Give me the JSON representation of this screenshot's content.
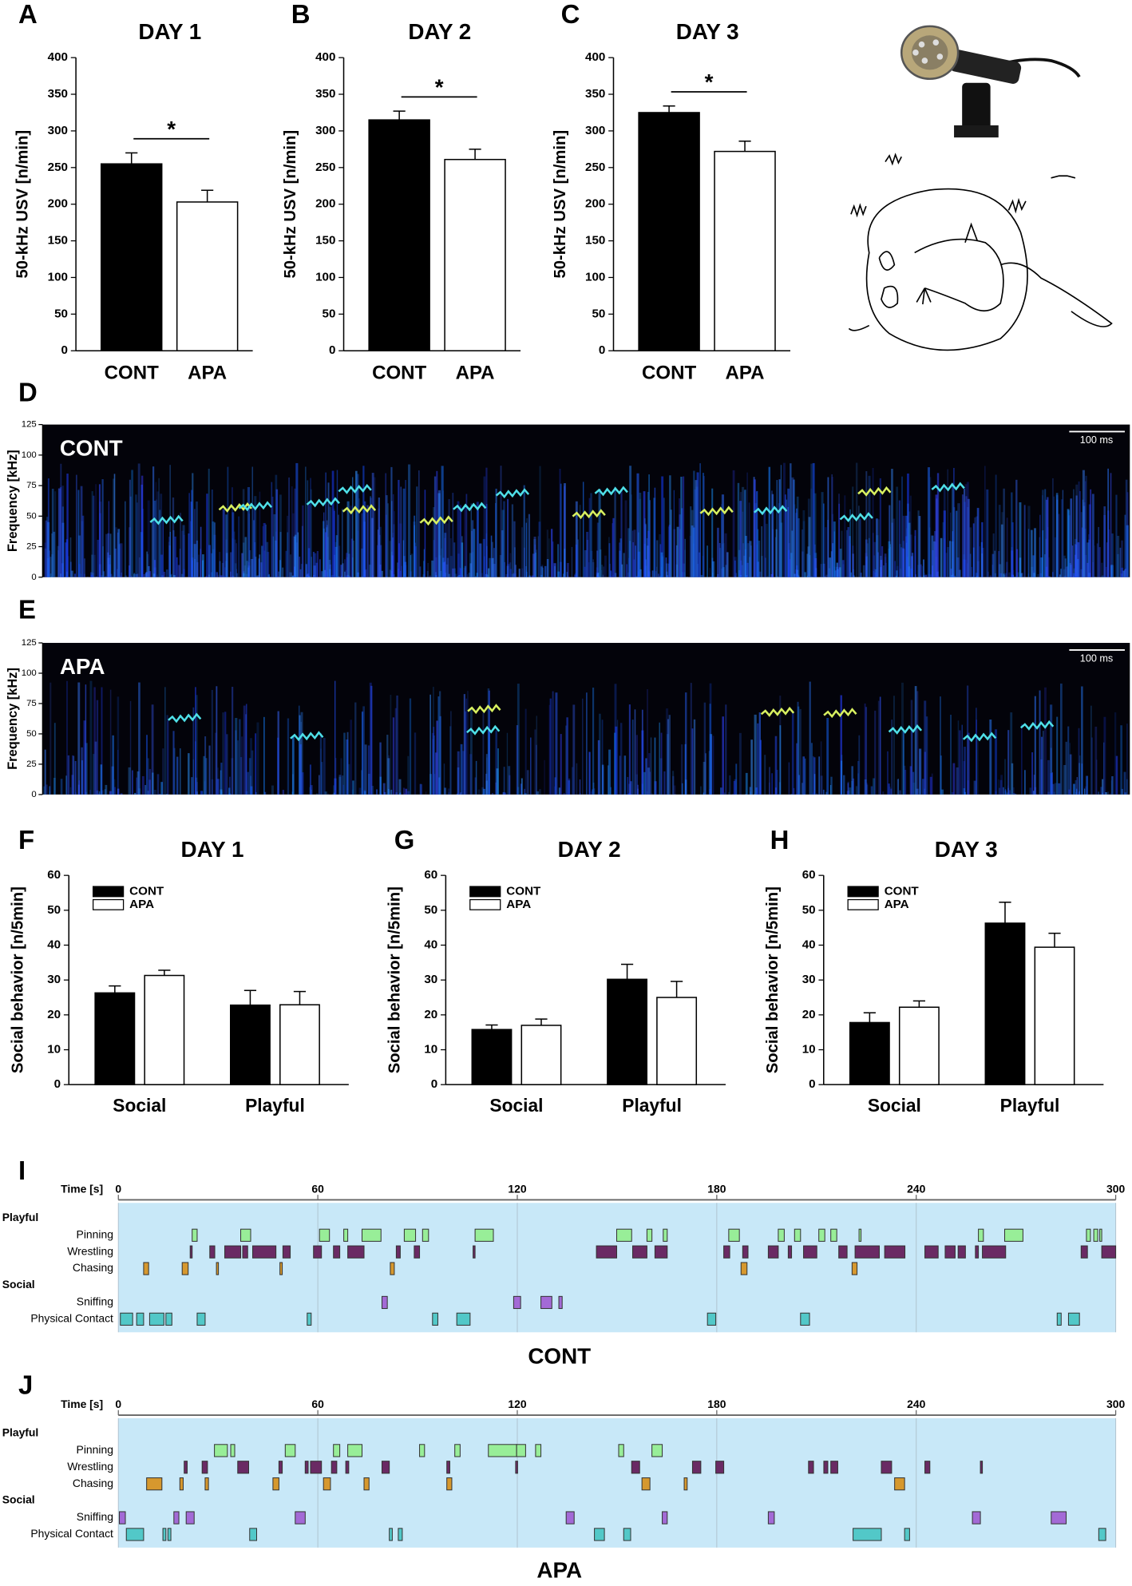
{
  "chart_data": [
    {
      "type": "bar",
      "panel": "A",
      "title": "DAY 1",
      "ylabel": "50-kHz USV [n/min]",
      "categories": [
        "CONT",
        "APA"
      ],
      "values": [
        255,
        203
      ],
      "errors": [
        15,
        16
      ],
      "colors": [
        "#000000",
        "#ffffff"
      ],
      "ylim": [
        0,
        400
      ],
      "yticks": [
        0,
        50,
        100,
        150,
        200,
        250,
        300,
        350,
        400
      ],
      "significance": "*"
    },
    {
      "type": "bar",
      "panel": "B",
      "title": "DAY 2",
      "ylabel": "50-kHz USV [n/min]",
      "categories": [
        "CONT",
        "APA"
      ],
      "values": [
        315,
        261
      ],
      "errors": [
        12,
        14
      ],
      "colors": [
        "#000000",
        "#ffffff"
      ],
      "ylim": [
        0,
        400
      ],
      "yticks": [
        0,
        50,
        100,
        150,
        200,
        250,
        300,
        350,
        400
      ],
      "significance": "*"
    },
    {
      "type": "bar",
      "panel": "C",
      "title": "DAY 3",
      "ylabel": "50-kHz USV [n/min]",
      "categories": [
        "CONT",
        "APA"
      ],
      "values": [
        325,
        272
      ],
      "errors": [
        9,
        14
      ],
      "colors": [
        "#000000",
        "#ffffff"
      ],
      "ylim": [
        0,
        400
      ],
      "yticks": [
        0,
        50,
        100,
        150,
        200,
        250,
        300,
        350,
        400
      ],
      "significance": "*"
    },
    {
      "type": "spectrogram",
      "panel": "D",
      "label": "CONT",
      "ylabel": "Frequency [kHz]",
      "ylim": [
        0,
        125
      ],
      "yticks": [
        0,
        25,
        50,
        75,
        100,
        125
      ],
      "scale_bar": "100 ms"
    },
    {
      "type": "spectrogram",
      "panel": "E",
      "label": "APA",
      "ylabel": "Frequency [kHz]",
      "ylim": [
        0,
        125
      ],
      "yticks": [
        0,
        25,
        50,
        75,
        100,
        125
      ],
      "scale_bar": "100 ms"
    },
    {
      "type": "bar",
      "panel": "F",
      "title": "DAY 1",
      "ylabel": "Social behavior [n/5min]",
      "categories": [
        "Social",
        "Playful"
      ],
      "legend": "top-left",
      "ylim": [
        0,
        60
      ],
      "yticks": [
        0,
        10,
        20,
        30,
        40,
        50,
        60
      ],
      "series": [
        {
          "name": "CONT",
          "color": "#000000",
          "values": [
            26.3,
            22.8
          ],
          "errors": [
            2,
            4.2
          ]
        },
        {
          "name": "APA",
          "color": "#ffffff",
          "values": [
            31.3,
            22.9
          ],
          "errors": [
            1.5,
            3.8
          ]
        }
      ]
    },
    {
      "type": "bar",
      "panel": "G",
      "title": "DAY 2",
      "ylabel": "Social behavior [n/5min]",
      "categories": [
        "Social",
        "Playful"
      ],
      "legend": "top-left",
      "ylim": [
        0,
        60
      ],
      "yticks": [
        0,
        10,
        20,
        30,
        40,
        50,
        60
      ],
      "series": [
        {
          "name": "CONT",
          "color": "#000000",
          "values": [
            15.8,
            30.2
          ],
          "errors": [
            1.3,
            4.3
          ]
        },
        {
          "name": "APA",
          "color": "#ffffff",
          "values": [
            17,
            25
          ],
          "errors": [
            1.8,
            4.6
          ]
        }
      ]
    },
    {
      "type": "bar",
      "panel": "H",
      "title": "DAY 3",
      "ylabel": "Social behavior [n/5min]",
      "categories": [
        "Social",
        "Playful"
      ],
      "legend": "top-left",
      "ylim": [
        0,
        60
      ],
      "yticks": [
        0,
        10,
        20,
        30,
        40,
        50,
        60
      ],
      "series": [
        {
          "name": "CONT",
          "color": "#000000",
          "values": [
            17.8,
            46.3
          ],
          "errors": [
            2.8,
            6
          ]
        },
        {
          "name": "APA",
          "color": "#ffffff",
          "values": [
            22.2,
            39.4
          ],
          "errors": [
            1.8,
            4
          ]
        }
      ]
    },
    {
      "type": "ethogram",
      "panel": "I",
      "caption": "CONT",
      "xlabel": "Time [s]",
      "xlim": [
        0,
        300
      ],
      "xticks": [
        0,
        60,
        120,
        180,
        240,
        300
      ],
      "groups": [
        {
          "name": "Playful",
          "rows": [
            {
              "name": "Pinning",
              "color": "#98ee98",
              "events": [
                [
                  22.2,
                  23.7
                ],
                [
                  36.8,
                  39.8
                ],
                [
                  60.5,
                  63.5
                ],
                [
                  67.8,
                  69
                ],
                [
                  73.3,
                  79
                ],
                [
                  86,
                  89.4
                ],
                [
                  91.5,
                  93.3
                ],
                [
                  107.3,
                  112.8
                ],
                [
                  149.9,
                  154.4
                ],
                [
                  159,
                  160.5
                ],
                [
                  163.9,
                  165.1
                ],
                [
                  183.6,
                  186.8
                ],
                [
                  198.5,
                  200.3
                ],
                [
                  203.4,
                  205.2
                ],
                [
                  210.7,
                  212.5
                ],
                [
                  214.3,
                  216.1
                ],
                [
                  222.8,
                  223.4
                ],
                [
                  258.7,
                  260.2
                ],
                [
                  266.6,
                  272.1
                ],
                [
                  291.2,
                  292.4
                ],
                [
                  293.4,
                  294.6
                ],
                [
                  295.2,
                  295.8
                ]
              ]
            },
            {
              "name": "Wrestling",
              "color": "#6a2a64",
              "events": [
                [
                  21.6,
                  22.2
                ],
                [
                  27.5,
                  29
                ],
                [
                  32,
                  36.8
                ],
                [
                  37.4,
                  38.9
                ],
                [
                  40.4,
                  47.4
                ],
                [
                  49.5,
                  51.7
                ],
                [
                  58.7,
                  61.1
                ],
                [
                  64.7,
                  66.6
                ],
                [
                  69,
                  73.9
                ],
                [
                  83.6,
                  84.8
                ],
                [
                  89,
                  90.6
                ],
                [
                  106.7,
                  107.3
                ],
                [
                  143.8,
                  149.9
                ],
                [
                  154.7,
                  159
                ],
                [
                  161.4,
                  165.1
                ],
                [
                  182.1,
                  183.9
                ],
                [
                  187.8,
                  189.4
                ],
                [
                  195.5,
                  198.5
                ],
                [
                  201.5,
                  202.5
                ],
                [
                  206.1,
                  210.1
                ],
                [
                  216.7,
                  219.2
                ],
                [
                  221.6,
                  228.9
                ],
                [
                  230.5,
                  236.6
                ],
                [
                  242.6,
                  246.6
                ],
                [
                  248.7,
                  251.7
                ],
                [
                  252.6,
                  254.8
                ],
                [
                  257.8,
                  258.7
                ],
                [
                  259.9,
                  266.9
                ],
                [
                  289.6,
                  291.5
                ],
                [
                  295.8,
                  300
                ]
              ]
            },
            {
              "name": "Chasing",
              "color": "#d6982e",
              "events": [
                [
                  7.6,
                  9.1
                ],
                [
                  19.2,
                  21
                ],
                [
                  29.5,
                  30.1
                ],
                [
                  48.6,
                  49.3
                ],
                [
                  81.8,
                  83
                ],
                [
                  187.3,
                  189.1
                ],
                [
                  220.7,
                  222.2
                ]
              ]
            }
          ]
        },
        {
          "name": "Social",
          "rows": [
            {
              "name": "Sniffing",
              "color": "#a36ad6",
              "events": [
                [
                  79.3,
                  80.9
                ],
                [
                  118.9,
                  121
                ],
                [
                  127.1,
                  130.4
                ],
                [
                  132.5,
                  133.5
                ]
              ]
            },
            {
              "name": "Physical Contact",
              "color": "#52c8c8",
              "events": [
                [
                  0.6,
                  4.3
                ],
                [
                  5.5,
                  7.6
                ],
                [
                  9.4,
                  13.7
                ],
                [
                  14.3,
                  16.1
                ],
                [
                  23.7,
                  26.1
                ],
                [
                  56.8,
                  58
                ],
                [
                  94.5,
                  96.1
                ],
                [
                  101.8,
                  105.8
                ],
                [
                  177.2,
                  179.7
                ],
                [
                  205.2,
                  207.9
                ],
                [
                  282.4,
                  283.6
                ],
                [
                  285.8,
                  289.1
                ]
              ]
            }
          ]
        }
      ]
    },
    {
      "type": "ethogram",
      "panel": "J",
      "caption": "APA",
      "xlabel": "Time [s]",
      "xlim": [
        0,
        300
      ],
      "xticks": [
        0,
        60,
        120,
        180,
        240,
        300
      ],
      "groups": [
        {
          "name": "Playful",
          "rows": [
            {
              "name": "Pinning",
              "color": "#98ee98",
              "events": [
                [
                  28.9,
                  32.8
                ],
                [
                  33.8,
                  35
                ],
                [
                  50.2,
                  53.2
                ],
                [
                  64.7,
                  66.6
                ],
                [
                  69,
                  73.3
                ],
                [
                  90.6,
                  92.1
                ],
                [
                  101.2,
                  102.8
                ],
                [
                  111.3,
                  119.8
                ],
                [
                  119.8,
                  122.5
                ],
                [
                  125.5,
                  127.1
                ],
                [
                  150.5,
                  152
                ],
                [
                  160.5,
                  163.6
                ]
              ]
            },
            {
              "name": "Wrestling",
              "color": "#6a2a64",
              "events": [
                [
                  19.8,
                  20.7
                ],
                [
                  25.2,
                  26.8
                ],
                [
                  35.9,
                  39.2
                ],
                [
                  48.3,
                  49.3
                ],
                [
                  56.2,
                  57.1
                ],
                [
                  57.8,
                  61.1
                ],
                [
                  64.1,
                  65.7
                ],
                [
                  68.4,
                  69.3
                ],
                [
                  79.3,
                  81.5
                ],
                [
                  98.8,
                  99.7
                ],
                [
                  119.5,
                  120.1
                ],
                [
                  154.4,
                  156.8
                ],
                [
                  172.7,
                  175.2
                ],
                [
                  179.7,
                  182.1
                ],
                [
                  207.6,
                  209.1
                ],
                [
                  212.2,
                  213.4
                ],
                [
                  214.3,
                  216.4
                ],
                [
                  229.5,
                  232.6
                ],
                [
                  242.6,
                  244.1
                ],
                [
                  259.3,
                  259.9
                ]
              ]
            },
            {
              "name": "Chasing",
              "color": "#d6982e",
              "events": [
                [
                  8.5,
                  13.1
                ],
                [
                  18.5,
                  19.5
                ],
                [
                  26.1,
                  27.1
                ],
                [
                  46.5,
                  48.3
                ],
                [
                  61.7,
                  63.8
                ],
                [
                  73.9,
                  75.4
                ],
                [
                  98.8,
                  100.3
                ],
                [
                  157.5,
                  159.9
                ],
                [
                  170.2,
                  171.1
                ],
                [
                  233.5,
                  236.5
                ]
              ]
            }
          ]
        },
        {
          "name": "Social",
          "rows": [
            {
              "name": "Sniffing",
              "color": "#a36ad6",
              "events": [
                [
                  0.3,
                  2.1
                ],
                [
                  16.7,
                  18.2
                ],
                [
                  20.4,
                  22.8
                ],
                [
                  53.2,
                  56.2
                ],
                [
                  134.7,
                  137.1
                ],
                [
                  163.6,
                  165.1
                ],
                [
                  195.5,
                  197.3
                ],
                [
                  256.9,
                  259.3
                ],
                [
                  280.6,
                  285.1
                ]
              ]
            },
            {
              "name": "Physical Contact",
              "color": "#52c8c8",
              "events": [
                [
                  2.4,
                  7.6
                ],
                [
                  13.4,
                  14.3
                ],
                [
                  14.9,
                  15.8
                ],
                [
                  39.5,
                  41.6
                ],
                [
                  81.5,
                  82.4
                ],
                [
                  84.2,
                  85.4
                ],
                [
                  143.2,
                  146.2
                ],
                [
                  152,
                  154.1
                ],
                [
                  221,
                  229.5
                ],
                [
                  236.5,
                  238
                ],
                [
                  294.9,
                  297
                ]
              ]
            }
          ]
        }
      ]
    }
  ]
}
